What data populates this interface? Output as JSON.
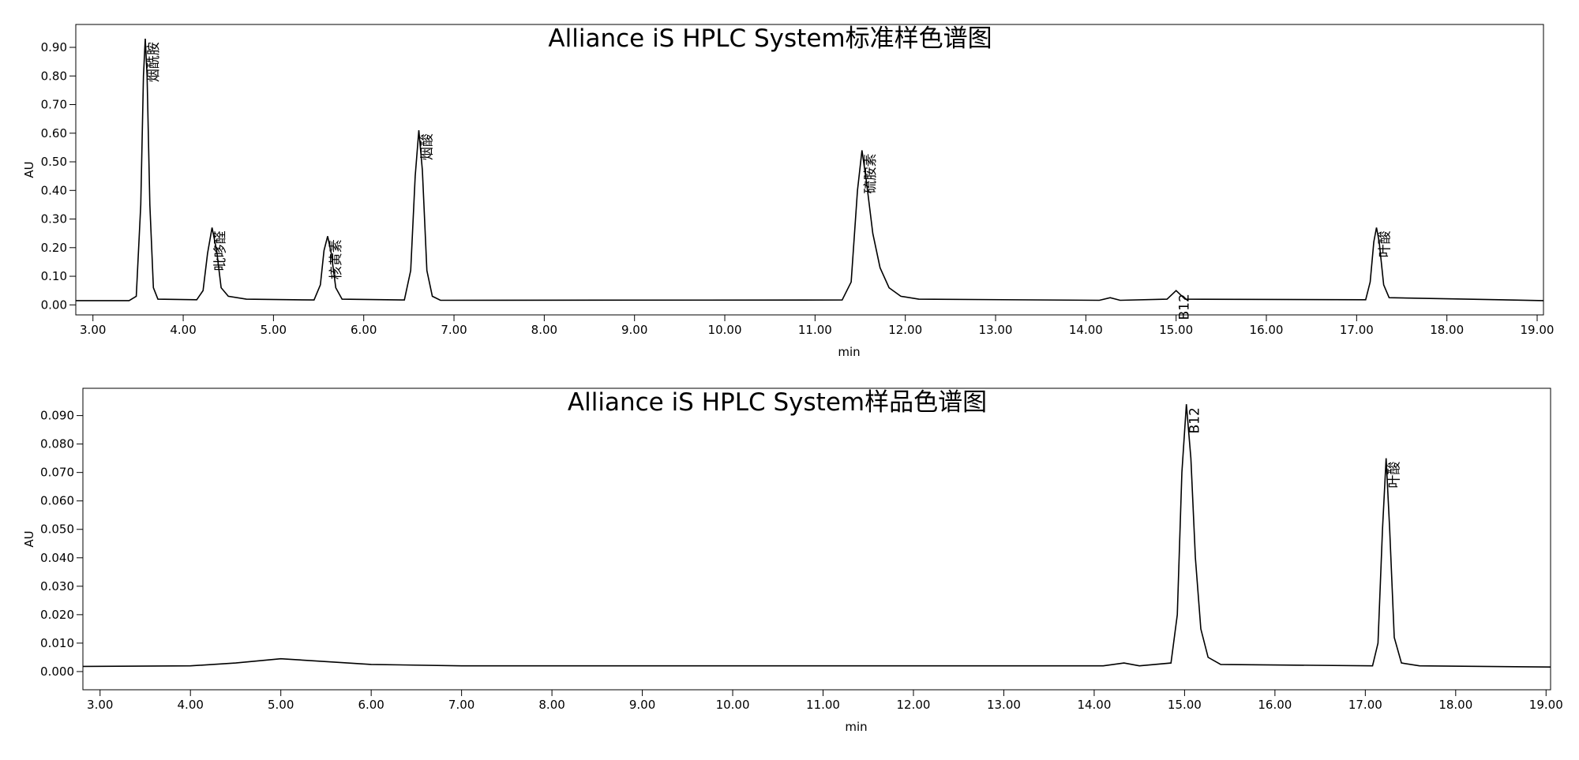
{
  "chart_data": [
    {
      "type": "line",
      "title": "Alliance iS HPLC System标准样色谱图",
      "x_label": "min",
      "y_label": "AU",
      "color": "#000000",
      "x": [
        2.81,
        3.4,
        3.48,
        3.53,
        3.56,
        3.58,
        3.6,
        3.63,
        3.67,
        3.72,
        4.15,
        4.22,
        4.27,
        4.32,
        4.37,
        4.42,
        4.5,
        4.7,
        5.45,
        5.52,
        5.56,
        5.6,
        5.64,
        5.69,
        5.76,
        6.45,
        6.52,
        6.57,
        6.61,
        6.65,
        6.7,
        6.76,
        6.85,
        11.3,
        11.4,
        11.47,
        11.52,
        11.57,
        11.64,
        11.72,
        11.82,
        11.95,
        12.15,
        14.15,
        14.27,
        14.38,
        14.9,
        15.0,
        15.1,
        17.1,
        17.15,
        17.19,
        17.22,
        17.25,
        17.3,
        17.36,
        19.07
      ],
      "values": [
        0.015,
        0.015,
        0.03,
        0.35,
        0.8,
        0.93,
        0.8,
        0.35,
        0.06,
        0.02,
        0.018,
        0.05,
        0.18,
        0.27,
        0.19,
        0.06,
        0.03,
        0.02,
        0.017,
        0.07,
        0.19,
        0.24,
        0.18,
        0.06,
        0.02,
        0.017,
        0.12,
        0.45,
        0.61,
        0.47,
        0.12,
        0.03,
        0.016,
        0.017,
        0.08,
        0.4,
        0.54,
        0.43,
        0.25,
        0.13,
        0.06,
        0.03,
        0.02,
        0.016,
        0.025,
        0.016,
        0.02,
        0.05,
        0.02,
        0.018,
        0.08,
        0.22,
        0.27,
        0.22,
        0.07,
        0.025,
        0.015
      ],
      "xlim": [
        2.81,
        19.07
      ],
      "ylim": [
        -0.035,
        0.98
      ],
      "xticks": [
        {
          "value": 3,
          "label": "3.00"
        },
        {
          "value": 4,
          "label": "4.00"
        },
        {
          "value": 5,
          "label": "5.00"
        },
        {
          "value": 6,
          "label": "6.00"
        },
        {
          "value": 7,
          "label": "7.00"
        },
        {
          "value": 8,
          "label": "8.00"
        },
        {
          "value": 9,
          "label": "9.00"
        },
        {
          "value": 10,
          "label": "10.00"
        },
        {
          "value": 11,
          "label": "11.00"
        },
        {
          "value": 12,
          "label": "12.00"
        },
        {
          "value": 13,
          "label": "13.00"
        },
        {
          "value": 14,
          "label": "14.00"
        },
        {
          "value": 15,
          "label": "15.00"
        },
        {
          "value": 16,
          "label": "16.00"
        },
        {
          "value": 17,
          "label": "17.00"
        },
        {
          "value": 18,
          "label": "18.00"
        },
        {
          "value": 19,
          "label": "19.00"
        }
      ],
      "yticks": [
        {
          "value": 0,
          "label": "0.00"
        },
        {
          "value": 0.1,
          "label": "0.10"
        },
        {
          "value": 0.2,
          "label": "0.20"
        },
        {
          "value": 0.3,
          "label": "0.30"
        },
        {
          "value": 0.4,
          "label": "0.40"
        },
        {
          "value": 0.5,
          "label": "0.50"
        },
        {
          "value": 0.6,
          "label": "0.60"
        },
        {
          "value": 0.7,
          "label": "0.70"
        },
        {
          "value": 0.8,
          "label": "0.80"
        },
        {
          "value": 0.9,
          "label": "0.90"
        }
      ],
      "annotations": [
        {
          "text": "烟酰胺",
          "x": 3.58,
          "y": 0.93
        },
        {
          "text": "吡哆醛",
          "x": 4.32,
          "y": 0.27
        },
        {
          "text": "核黄素",
          "x": 5.6,
          "y": 0.24
        },
        {
          "text": "烟酸",
          "x": 6.61,
          "y": 0.61
        },
        {
          "text": "硫胺素",
          "x": 11.52,
          "y": 0.54
        },
        {
          "text": "B12",
          "x": 15.0,
          "y": 0.05
        },
        {
          "text": "叶酸",
          "x": 17.22,
          "y": 0.27
        }
      ]
    },
    {
      "type": "line",
      "title": "Alliance iS HPLC System样品色谱图",
      "x_label": "min",
      "y_label": "AU",
      "color": "#000000",
      "x": [
        2.81,
        4.0,
        4.5,
        5.0,
        5.5,
        6.0,
        7.0,
        14.1,
        14.33,
        14.5,
        14.85,
        14.92,
        14.97,
        15.02,
        15.07,
        15.12,
        15.18,
        15.26,
        15.4,
        17.08,
        17.14,
        17.19,
        17.23,
        17.27,
        17.32,
        17.4,
        17.6,
        19.05
      ],
      "values": [
        0.0018,
        0.002,
        0.003,
        0.0045,
        0.0035,
        0.0025,
        0.002,
        0.002,
        0.003,
        0.002,
        0.003,
        0.02,
        0.07,
        0.094,
        0.075,
        0.04,
        0.015,
        0.005,
        0.0025,
        0.002,
        0.01,
        0.05,
        0.075,
        0.05,
        0.012,
        0.003,
        0.002,
        0.0016
      ],
      "xlim": [
        2.81,
        19.05
      ],
      "ylim": [
        -0.0064,
        0.0996
      ],
      "xticks": [
        {
          "value": 3,
          "label": "3.00"
        },
        {
          "value": 4,
          "label": "4.00"
        },
        {
          "value": 5,
          "label": "5.00"
        },
        {
          "value": 6,
          "label": "6.00"
        },
        {
          "value": 7,
          "label": "7.00"
        },
        {
          "value": 8,
          "label": "8.00"
        },
        {
          "value": 9,
          "label": "9.00"
        },
        {
          "value": 10,
          "label": "10.00"
        },
        {
          "value": 11,
          "label": "11.00"
        },
        {
          "value": 12,
          "label": "12.00"
        },
        {
          "value": 13,
          "label": "13.00"
        },
        {
          "value": 14,
          "label": "14.00"
        },
        {
          "value": 15,
          "label": "15.00"
        },
        {
          "value": 16,
          "label": "16.00"
        },
        {
          "value": 17,
          "label": "17.00"
        },
        {
          "value": 18,
          "label": "18.00"
        },
        {
          "value": 19,
          "label": "19.00"
        }
      ],
      "yticks": [
        {
          "value": 0,
          "label": "0.000"
        },
        {
          "value": 0.01,
          "label": "0.010"
        },
        {
          "value": 0.02,
          "label": "0.020"
        },
        {
          "value": 0.03,
          "label": "0.030"
        },
        {
          "value": 0.04,
          "label": "0.040"
        },
        {
          "value": 0.05,
          "label": "0.050"
        },
        {
          "value": 0.06,
          "label": "0.060"
        },
        {
          "value": 0.07,
          "label": "0.070"
        },
        {
          "value": 0.08,
          "label": "0.080"
        },
        {
          "value": 0.09,
          "label": "0.090"
        }
      ],
      "annotations": [
        {
          "text": "B12",
          "x": 15.02,
          "y": 0.094
        },
        {
          "text": "叶酸",
          "x": 17.23,
          "y": 0.075
        }
      ]
    }
  ]
}
